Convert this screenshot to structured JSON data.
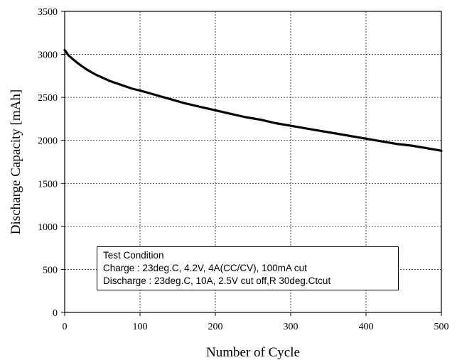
{
  "chart_data": {
    "type": "line",
    "xlabel": "Number of Cycle",
    "ylabel": "Discharge  Capacity  [mAh]",
    "xlim": [
      0,
      500
    ],
    "ylim": [
      0,
      3500
    ],
    "xticks": [
      "0",
      "100",
      "200",
      "300",
      "400",
      "500"
    ],
    "yticks": [
      "0",
      "500",
      "1000",
      "1500",
      "2000",
      "2500",
      "3000",
      "3500"
    ],
    "grid": true,
    "annotation": {
      "title": "Test Condition",
      "lines": [
        "Charge : 23deg.C, 4.2V, 4A(CC/CV), 100mA cut",
        "Discharge : 23deg.C, 10A, 2.5V cut off,R 30deg.Ctcut"
      ]
    },
    "series": [
      {
        "x": [
          0,
          5,
          10,
          20,
          30,
          40,
          50,
          60,
          70,
          80,
          90,
          100,
          120,
          140,
          160,
          180,
          200,
          220,
          240,
          260,
          280,
          300,
          320,
          340,
          360,
          380,
          400,
          420,
          440,
          460,
          480,
          500
        ],
        "values": [
          3050,
          2990,
          2950,
          2880,
          2820,
          2770,
          2730,
          2690,
          2660,
          2630,
          2600,
          2580,
          2530,
          2480,
          2430,
          2390,
          2350,
          2310,
          2270,
          2240,
          2200,
          2170,
          2140,
          2110,
          2080,
          2050,
          2020,
          1990,
          1960,
          1940,
          1910,
          1880
        ],
        "color": "#000000"
      }
    ]
  }
}
